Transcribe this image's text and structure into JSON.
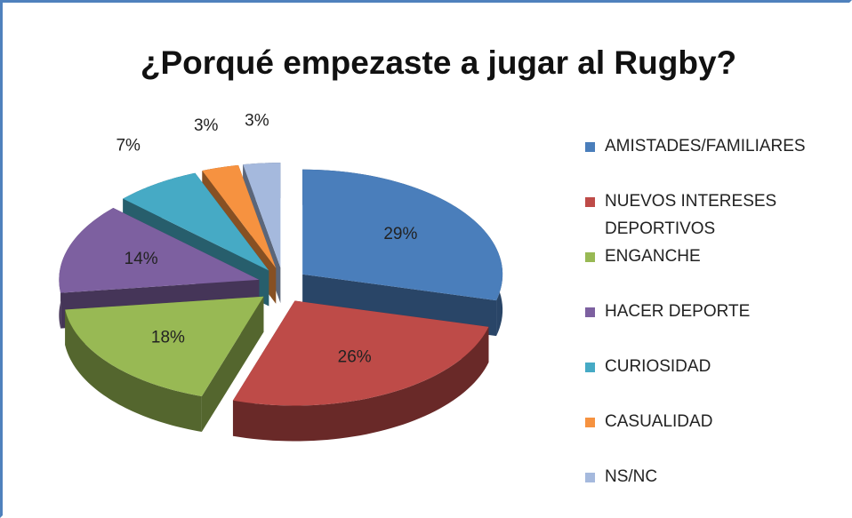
{
  "chart_data": {
    "type": "pie3d",
    "title": "¿Porqué empezaste a jugar al Rugby?",
    "categories": [
      "AMISTADES/FAMILIARES",
      "NUEVOS INTERESES DEPORTIVOS",
      "ENGANCHE",
      "HACER DEPORTE",
      "CURIOSIDAD",
      "CASUALIDAD",
      "NS/NC"
    ],
    "values": [
      29,
      26,
      18,
      14,
      7,
      3,
      3
    ],
    "value_labels": [
      "29%",
      "26%",
      "18%",
      "14%",
      "7%",
      "3%",
      "3%"
    ],
    "colors": [
      "#4a7ebb",
      "#be4b48",
      "#98b954",
      "#7d60a0",
      "#46aac5",
      "#f69240",
      "#a5b9dd"
    ],
    "legend": "right"
  }
}
